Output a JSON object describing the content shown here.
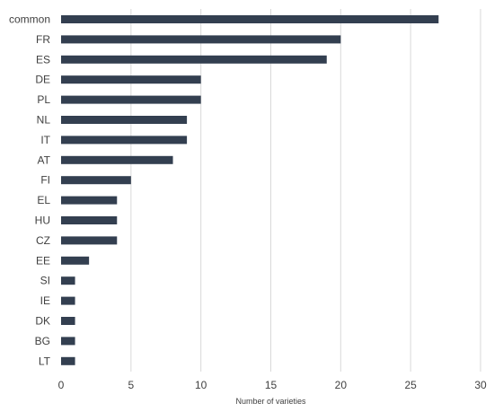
{
  "chart_data": {
    "type": "bar",
    "orientation": "horizontal",
    "categories": [
      "common",
      "FR",
      "ES",
      "DE",
      "PL",
      "NL",
      "IT",
      "AT",
      "FI",
      "EL",
      "HU",
      "CZ",
      "EE",
      "SI",
      "IE",
      "DK",
      "BG",
      "LT"
    ],
    "values": [
      27,
      20,
      19,
      10,
      10,
      9,
      9,
      8,
      5,
      4,
      4,
      4,
      2,
      1,
      1,
      1,
      1,
      1
    ],
    "xlabel": "Number of varieties",
    "ylabel": "",
    "title": "",
    "xlim": [
      0,
      30
    ],
    "xticks": [
      0,
      5,
      10,
      15,
      20,
      25,
      30
    ],
    "grid": "vertical",
    "bar_color": "#333f50",
    "grid_color": "#d9d9d9",
    "legend": "none"
  }
}
